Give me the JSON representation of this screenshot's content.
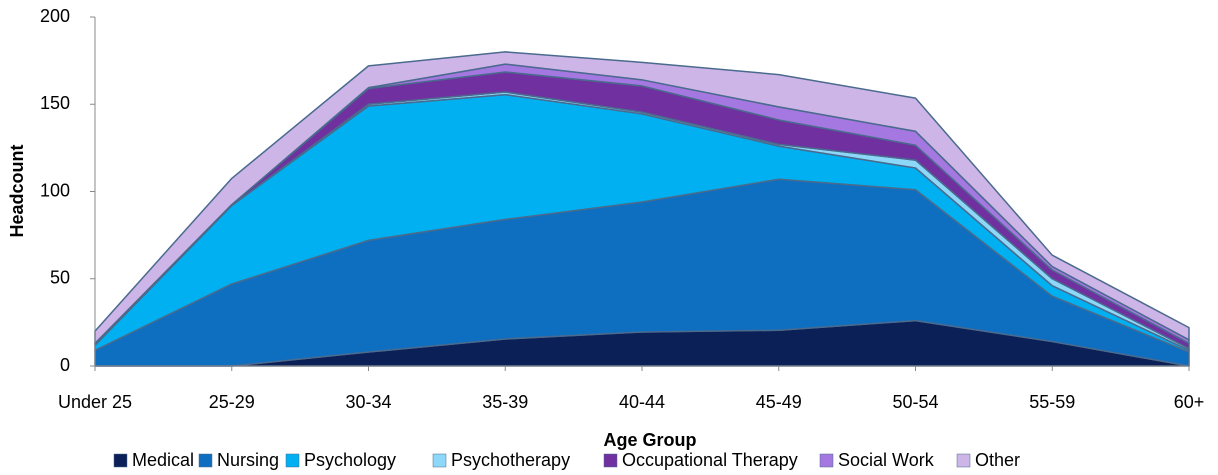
{
  "chart_data": {
    "type": "stacked_area",
    "x_label": "Age Group",
    "y_label": "Headcount",
    "categories": [
      "Under 25",
      "25-29",
      "30-34",
      "35-39",
      "40-44",
      "45-49",
      "50-54",
      "55-59",
      "60+"
    ],
    "series": [
      {
        "name": "Medical",
        "color": "#0a2057",
        "values": [
          0,
          0,
          8,
          15.5,
          19.5,
          20.5,
          26,
          14,
          0
        ]
      },
      {
        "name": "Nursing",
        "color": "#0e6fc1",
        "values": [
          9,
          47,
          64,
          68.5,
          74.5,
          86.5,
          75,
          26,
          8
        ]
      },
      {
        "name": "Psychology",
        "color": "#00b0f0",
        "values": [
          3,
          45,
          77,
          71.5,
          50.5,
          19,
          12.5,
          6,
          1
        ]
      },
      {
        "name": "Psychotherapy",
        "color": "#8dd8f8",
        "values": [
          0,
          0,
          1,
          1.5,
          1,
          1,
          4.5,
          4,
          1
        ]
      },
      {
        "name": "Occupational Therapy",
        "color": "#7030a0",
        "values": [
          1,
          0.5,
          9,
          11.5,
          15,
          14,
          8.5,
          5,
          3
        ]
      },
      {
        "name": "Social Work",
        "color": "#a577e0",
        "values": [
          0,
          0,
          0.5,
          4.5,
          3.5,
          7.5,
          8,
          2,
          2
        ]
      },
      {
        "name": "Other",
        "color": "#cdb5e8",
        "values": [
          7,
          15,
          12.5,
          7,
          10,
          18.5,
          19,
          6.5,
          7
        ]
      }
    ],
    "ylim": [
      0,
      200
    ],
    "yticks": [
      0,
      50,
      100,
      150,
      200
    ],
    "grid": false,
    "legend": "bottom"
  }
}
